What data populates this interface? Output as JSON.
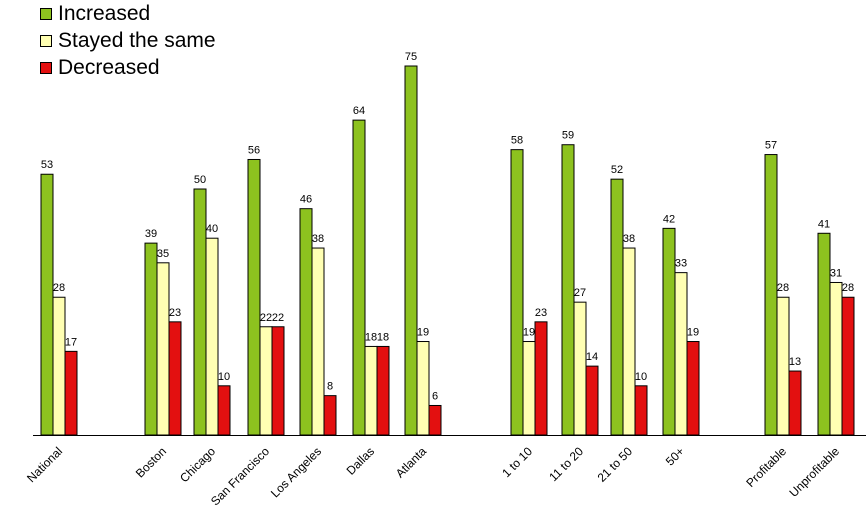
{
  "legend": {
    "position": "top-left",
    "items": [
      {
        "label": "Increased",
        "color": "#8dc21f"
      },
      {
        "label": "Stayed the same",
        "color": "#ffffb3"
      },
      {
        "label": "Decreased",
        "color": "#e31010"
      }
    ]
  },
  "chart_data": {
    "type": "bar",
    "title": "",
    "xlabel": "",
    "ylabel": "",
    "ylim": [
      0,
      80
    ],
    "grid": false,
    "categories": [
      "National",
      "Boston",
      "Chicago",
      "San Francisco",
      "Los Angeles",
      "Dallas",
      "Atlanta",
      "1 to 10",
      "11 to 20",
      "21 to 50",
      "50+",
      "Profitable",
      "Unprofitable"
    ],
    "group_breaks_after": [
      "National",
      "Atlanta",
      "50+"
    ],
    "series": [
      {
        "name": "Increased",
        "color": "#8dc21f",
        "values": [
          53,
          39,
          50,
          56,
          46,
          64,
          75,
          58,
          59,
          52,
          42,
          57,
          41
        ]
      },
      {
        "name": "Stayed the same",
        "color": "#ffffb3",
        "values": [
          28,
          35,
          40,
          22,
          38,
          18,
          19,
          19,
          27,
          38,
          33,
          28,
          31
        ]
      },
      {
        "name": "Decreased",
        "color": "#e31010",
        "values": [
          17,
          23,
          10,
          22,
          8,
          18,
          6,
          23,
          14,
          10,
          19,
          13,
          28
        ]
      }
    ]
  }
}
